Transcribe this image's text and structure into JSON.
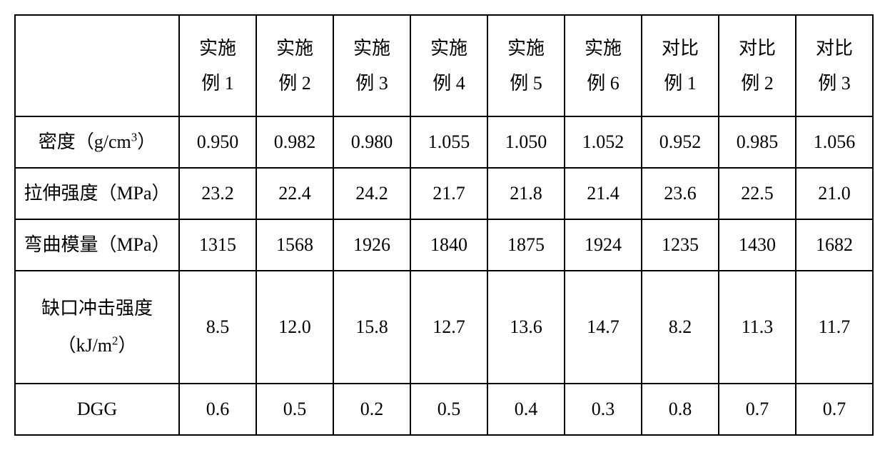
{
  "table": {
    "border_color": "#000000",
    "background_color": "#ffffff",
    "text_color": "#000000",
    "font_family": "SimSun",
    "header_fontsize": 26,
    "label_fontsize": 26,
    "data_fontsize": 26,
    "col_label_width": 230,
    "col_data_width": 108,
    "header_row_height": 128,
    "data_row_height": 70,
    "tall_row_height": 140,
    "columns": [
      {
        "line1": "",
        "line2": ""
      },
      {
        "line1": "实施",
        "line2": "例 1"
      },
      {
        "line1": "实施",
        "line2": "例 2"
      },
      {
        "line1": "实施",
        "line2": "例 3"
      },
      {
        "line1": "实施",
        "line2": "例 4"
      },
      {
        "line1": "实施",
        "line2": "例 5"
      },
      {
        "line1": "实施",
        "line2": "例 6"
      },
      {
        "line1": "对比",
        "line2": "例 1"
      },
      {
        "line1": "对比",
        "line2": "例 2"
      },
      {
        "line1": "对比",
        "line2": "例 3"
      }
    ],
    "rows": [
      {
        "label_pre": "密度（g/cm",
        "label_sup": "3",
        "label_post": "）",
        "tall": false,
        "values": [
          "0.950",
          "0.982",
          "0.980",
          "1.055",
          "1.050",
          "1.052",
          "0.952",
          "0.985",
          "1.056"
        ]
      },
      {
        "label_pre": "拉伸强度（MPa）",
        "label_sup": "",
        "label_post": "",
        "tall": false,
        "values": [
          "23.2",
          "22.4",
          "24.2",
          "21.7",
          "21.8",
          "21.4",
          "23.6",
          "22.5",
          "21.0"
        ]
      },
      {
        "label_pre": "弯曲模量（MPa）",
        "label_sup": "",
        "label_post": "",
        "tall": false,
        "values": [
          "1315",
          "1568",
          "1926",
          "1840",
          "1875",
          "1924",
          "1235",
          "1430",
          "1682"
        ]
      },
      {
        "label_line1": "缺口冲击强度",
        "label_line2_pre": "（kJ/m",
        "label_line2_sup": "2",
        "label_line2_post": "）",
        "tall": true,
        "values": [
          "8.5",
          "12.0",
          "15.8",
          "12.7",
          "13.6",
          "14.7",
          "8.2",
          "11.3",
          "11.7"
        ]
      },
      {
        "label_pre": "DGG",
        "label_sup": "",
        "label_post": "",
        "tall": false,
        "values": [
          "0.6",
          "0.5",
          "0.2",
          "0.5",
          "0.4",
          "0.3",
          "0.8",
          "0.7",
          "0.7"
        ]
      }
    ]
  }
}
